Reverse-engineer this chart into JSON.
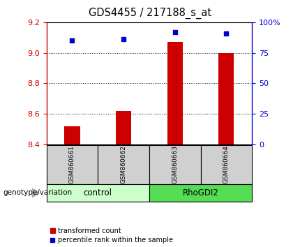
{
  "title": "GDS4455 / 217188_s_at",
  "samples": [
    "GSM860661",
    "GSM860662",
    "GSM860663",
    "GSM860664"
  ],
  "bar_values": [
    8.52,
    8.62,
    9.07,
    9.0
  ],
  "bar_base": 8.4,
  "percentile_values": [
    85,
    86,
    92,
    91
  ],
  "ylim_left": [
    8.4,
    9.2
  ],
  "ylim_right": [
    0,
    100
  ],
  "yticks_left": [
    8.4,
    8.6,
    8.8,
    9.0,
    9.2
  ],
  "yticks_right": [
    0,
    25,
    50,
    75,
    100
  ],
  "group_colors": {
    "control": "#ccffcc",
    "RhoGDI2": "#55dd55"
  },
  "bar_color": "#cc0000",
  "dot_color": "#0000cc",
  "bg_color": "#ffffff",
  "sample_box_color": "#d0d0d0",
  "genotype_label": "genotype/variation",
  "legend_label_bar": "transformed count",
  "legend_label_dot": "percentile rank within the sample"
}
